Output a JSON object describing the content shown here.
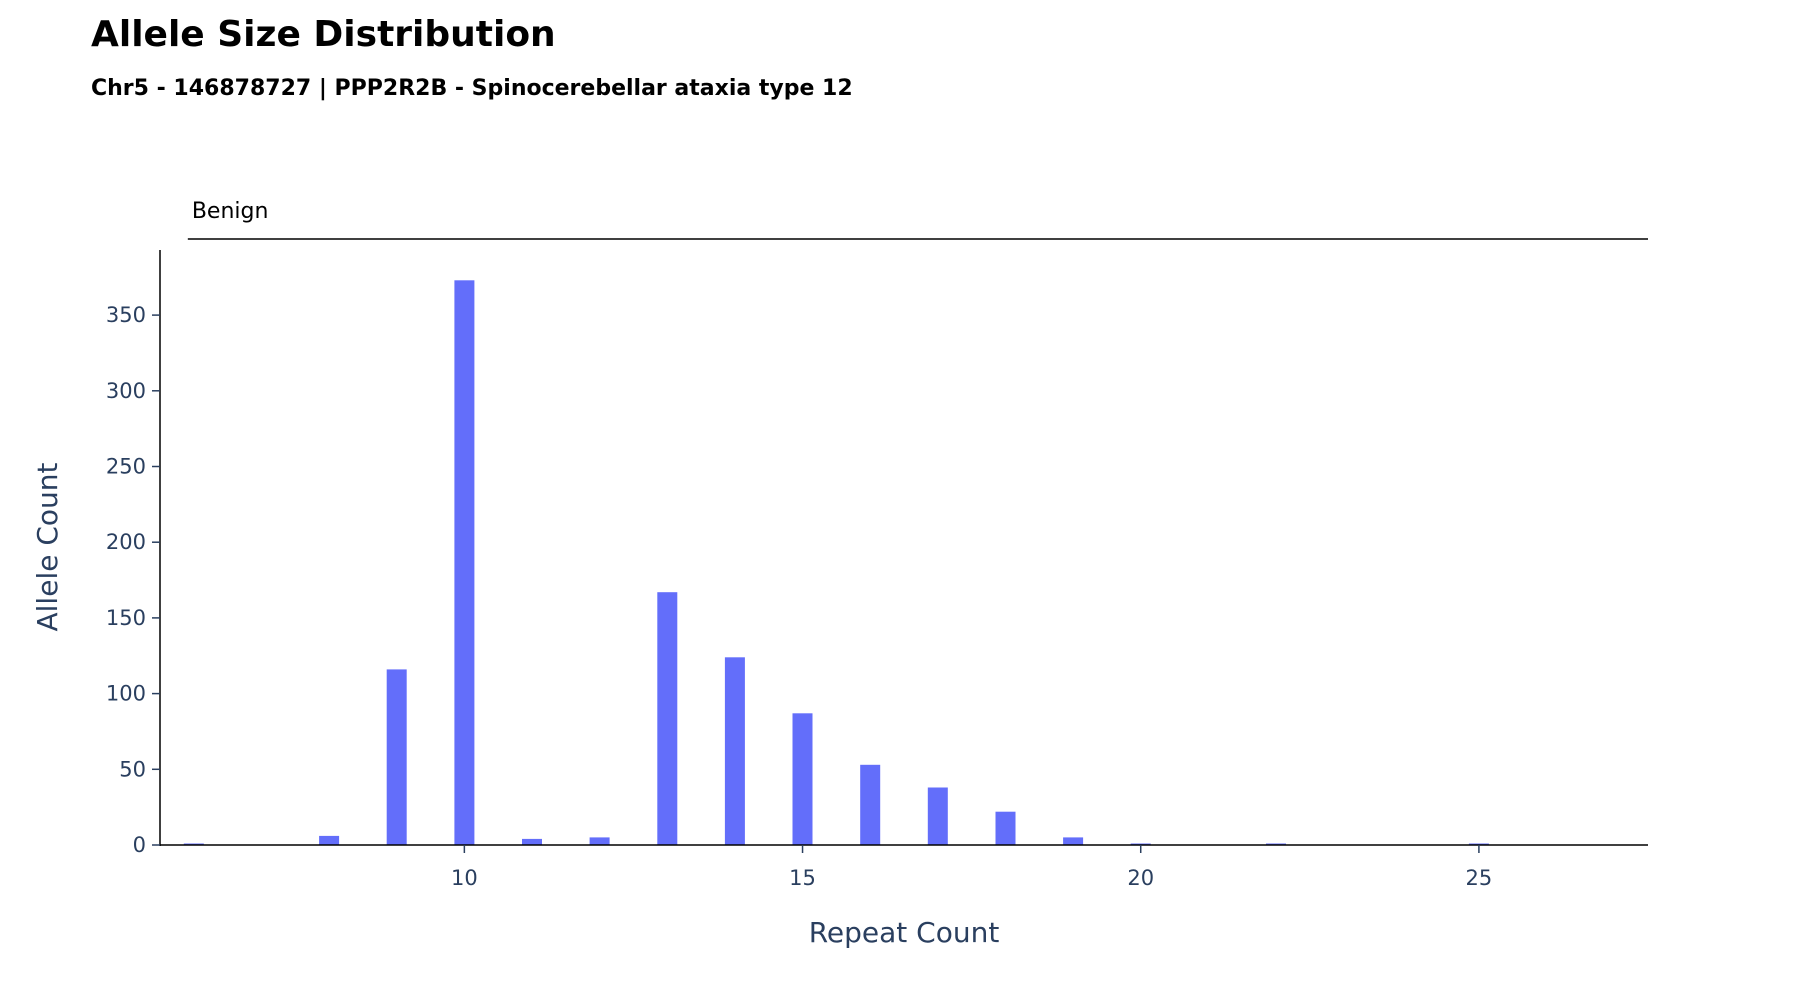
{
  "chart_data": {
    "type": "bar",
    "title": "Allele Size Distribution",
    "subtitle": "Chr5 - 146878727 | PPP2R2B - Spinocerebellar ataxia type 12",
    "xlabel": "Repeat Count",
    "ylabel": "Allele Count",
    "xlim": [
      5.5,
      27.5
    ],
    "ylim": [
      0,
      393
    ],
    "x_ticks": [
      10,
      15,
      20,
      25
    ],
    "y_ticks": [
      0,
      50,
      100,
      150,
      200,
      250,
      300,
      350
    ],
    "grid": false,
    "series": [
      {
        "x": [
          6,
          8,
          9,
          10,
          11,
          12,
          13,
          14,
          15,
          16,
          17,
          18,
          19,
          20,
          22,
          25
        ],
        "values": [
          1,
          6,
          116,
          373,
          4,
          5,
          167,
          124,
          87,
          53,
          38,
          22,
          5,
          1,
          1,
          1
        ],
        "color": "#636efa"
      }
    ],
    "range_annotations": [
      {
        "label": "Benign",
        "x_start": 6,
        "x_end": 27.5
      }
    ],
    "axis_color": "#2a3f5f",
    "text_color": "#2a3f5f"
  }
}
